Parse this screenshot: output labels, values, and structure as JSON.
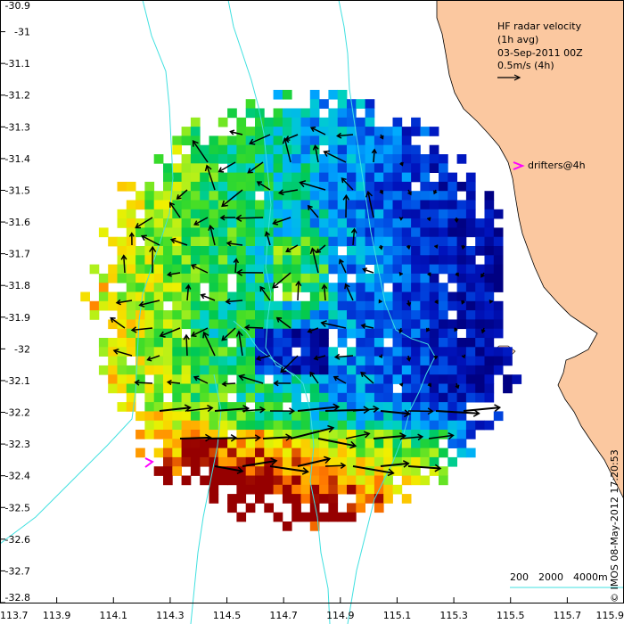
{
  "map": {
    "title_lines": [
      "HF radar velocity",
      "(1h avg)",
      "03-Sep-2011 00Z"
    ],
    "scale_label": "0.5m/s (4h)",
    "drifters_label": "drifters@4h",
    "credit": "© IMOS 08-May-2012 17:20:53",
    "depth_labels": [
      "200",
      "2000",
      "4000m"
    ],
    "x_ticks": [
      "113.7",
      "113.9",
      "114.1",
      "114.3",
      "114.5",
      "114.7",
      "114.9",
      "115.1",
      "115.3",
      "115.5",
      "115.7",
      "115.9"
    ],
    "y_ticks": [
      "-30.9",
      "-31",
      "-31.1",
      "-31.2",
      "-31.3",
      "-31.4",
      "-31.5",
      "-31.6",
      "-31.7",
      "-31.8",
      "-31.9",
      "-32",
      "-32.1",
      "-32.2",
      "-32.3",
      "-32.4",
      "-32.5",
      "-32.6",
      "-32.7",
      "-32.8"
    ],
    "colors": {
      "land": "#FBC8A0",
      "bathymetry": "#40E0E0",
      "drifter": "#FF00FF",
      "arrow": "#000000"
    }
  },
  "chart_data": {
    "type": "heatmap",
    "x_label_values": [
      113.7,
      113.9,
      114.1,
      114.3,
      114.5,
      114.7,
      114.9,
      115.1,
      115.3,
      115.5,
      115.7,
      115.9
    ],
    "y_label_values": [
      -30.9,
      -31.0,
      -31.1,
      -31.2,
      -31.3,
      -31.4,
      -31.5,
      -31.6,
      -31.7,
      -31.8,
      -31.9,
      -32.0,
      -32.1,
      -32.2,
      -32.3,
      -32.4,
      -32.5,
      -32.6,
      -32.7,
      -32.8
    ],
    "xlim": [
      113.7,
      115.9
    ],
    "ylim": [
      -32.8,
      -30.9
    ],
    "grid": false
  }
}
